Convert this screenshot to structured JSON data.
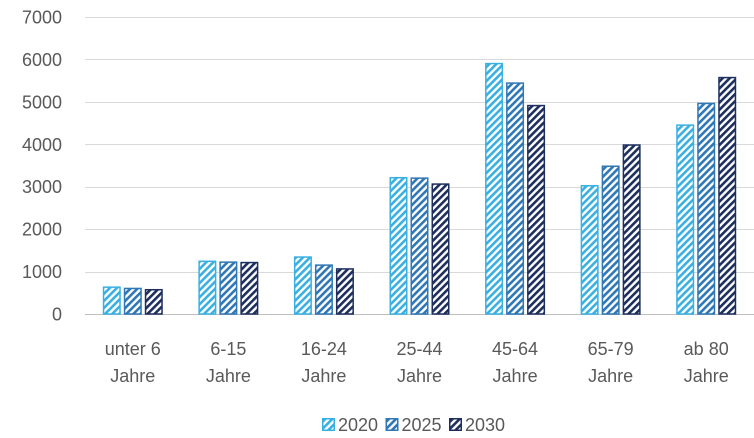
{
  "chart_data": {
    "type": "bar",
    "categories": [
      "unter 6 Jahre",
      "6-15 Jahre",
      "16-24 Jahre",
      "25-44 Jahre",
      "45-64 Jahre",
      "65-79 Jahre",
      "ab 80 Jahre"
    ],
    "series": [
      {
        "name": "2020",
        "color": "#3AB0E2",
        "values": [
          650,
          1260,
          1360,
          3230,
          5920,
          3040,
          4470
        ]
      },
      {
        "name": "2025",
        "color": "#2F77B5",
        "values": [
          620,
          1240,
          1170,
          3220,
          5460,
          3500,
          4980
        ]
      },
      {
        "name": "2030",
        "color": "#1E2F5E",
        "values": [
          590,
          1230,
          1080,
          3080,
          4930,
          4000,
          5590
        ]
      }
    ],
    "ylim": [
      0,
      7000
    ],
    "yticks": [
      0,
      1000,
      2000,
      3000,
      4000,
      5000,
      6000,
      7000
    ],
    "grid": true,
    "legend": "bottom",
    "fill_pattern": "diagonal-hatch"
  }
}
